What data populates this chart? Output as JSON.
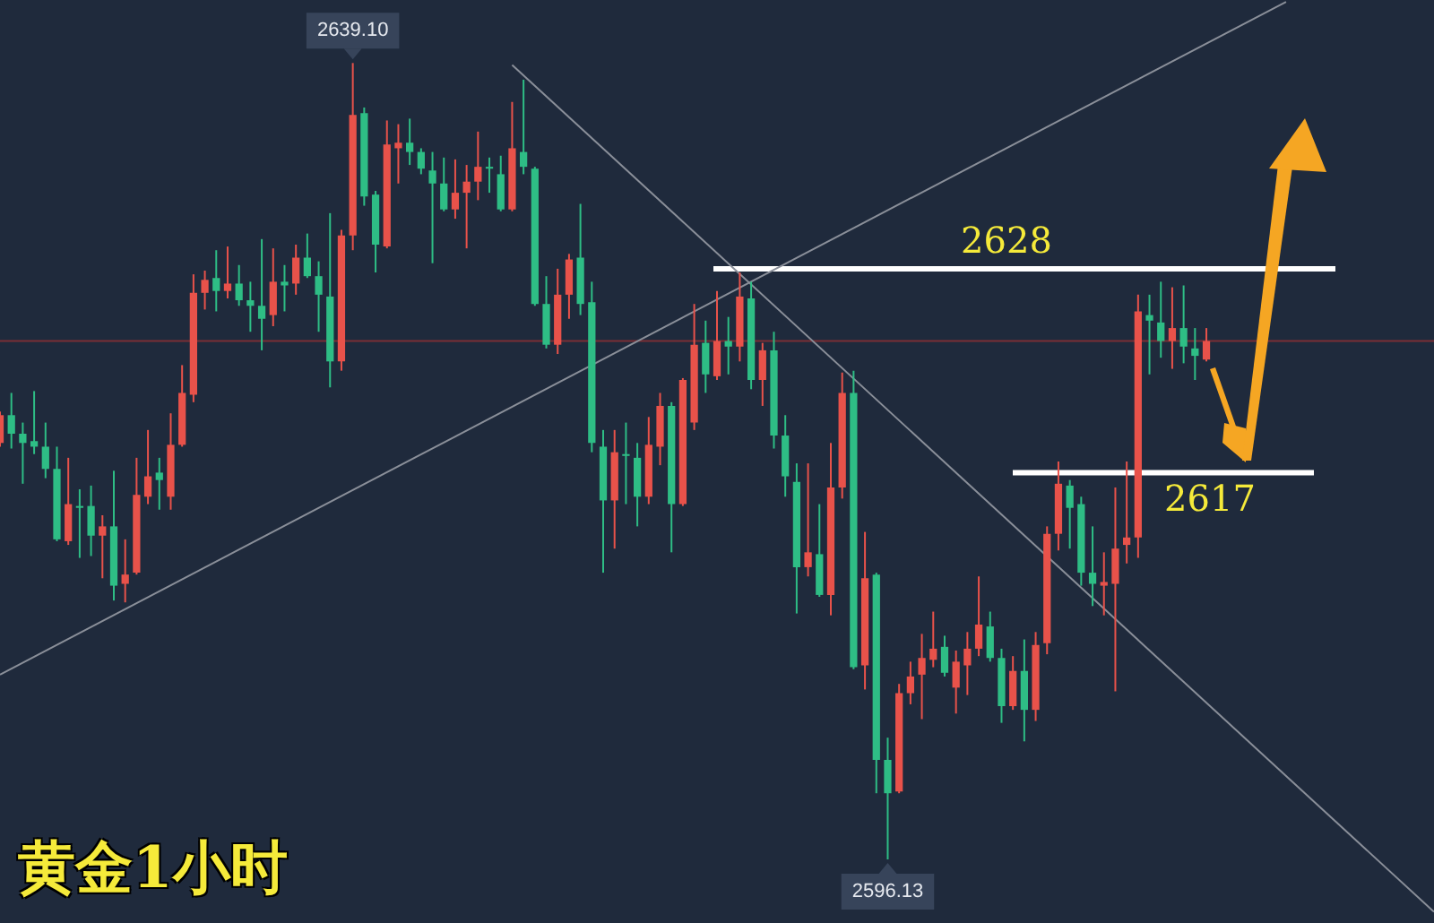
{
  "chart_data": {
    "type": "candlestick",
    "title": "黄金1小时",
    "categories": [
      null,
      null,
      null,
      null,
      null,
      null,
      null,
      null,
      null,
      null,
      null,
      null,
      null,
      null,
      null,
      null,
      null,
      null,
      null,
      null,
      null,
      null,
      null,
      null,
      null,
      null,
      null,
      null,
      null,
      null,
      null,
      null,
      null,
      null,
      null,
      null,
      null,
      null,
      null,
      null,
      null,
      null,
      null,
      null,
      null,
      null,
      null,
      null,
      null,
      null,
      null,
      null,
      null,
      null,
      null,
      null,
      null,
      null,
      null,
      null,
      null,
      null,
      null,
      null,
      null,
      null,
      null,
      null,
      null,
      null,
      null,
      null,
      null,
      null,
      null,
      null,
      null,
      null,
      null,
      null,
      null,
      null,
      null,
      null,
      null,
      null,
      null,
      null,
      null,
      null,
      null,
      null,
      null,
      null,
      null,
      null,
      null,
      null,
      null,
      null,
      null,
      null,
      null,
      null,
      null,
      null,
      null,
      null,
      null,
      null,
      null,
      null,
      null,
      null,
      null,
      null,
      null,
      null,
      null,
      null,
      null,
      null,
      null,
      null,
      null,
      null,
      null
    ],
    "ohlc": [
      [
        2618.6,
        2620.3,
        2618.4,
        2620.1
      ],
      [
        2620.1,
        2621.3,
        2618.3,
        2619.1
      ],
      [
        2619.1,
        2619.7,
        2616.4,
        2618.6
      ],
      [
        2618.7,
        2621.4,
        2618.0,
        2618.4
      ],
      [
        2618.4,
        2619.7,
        2616.7,
        2617.2
      ],
      [
        2617.2,
        2618.4,
        2613.3,
        2613.4
      ],
      [
        2613.3,
        2617.8,
        2613.1,
        2615.3
      ],
      [
        2615.2,
        2616.1,
        2612.4,
        2615.1
      ],
      [
        2615.2,
        2616.3,
        2612.5,
        2613.6
      ],
      [
        2613.6,
        2614.7,
        2611.3,
        2614.1
      ],
      [
        2614.1,
        2617.1,
        2610.1,
        2610.9
      ],
      [
        2611.0,
        2613.4,
        2610.0,
        2611.5
      ],
      [
        2611.6,
        2617.8,
        2611.5,
        2615.8
      ],
      [
        2615.7,
        2619.3,
        2615.3,
        2616.8
      ],
      [
        2617.0,
        2617.8,
        2615.0,
        2616.6
      ],
      [
        2615.7,
        2620.2,
        2615.0,
        2618.5
      ],
      [
        2618.5,
        2622.8,
        2618.4,
        2621.3
      ],
      [
        2621.2,
        2627.7,
        2620.8,
        2626.7
      ],
      [
        2626.7,
        2627.9,
        2625.8,
        2627.4
      ],
      [
        2627.5,
        2629.0,
        2625.7,
        2626.8
      ],
      [
        2626.8,
        2629.2,
        2626.4,
        2627.2
      ],
      [
        2627.2,
        2628.2,
        2626.0,
        2626.3
      ],
      [
        2626.3,
        2627.3,
        2624.6,
        2626.0
      ],
      [
        2626.0,
        2629.6,
        2623.6,
        2625.3
      ],
      [
        2625.5,
        2629.1,
        2624.9,
        2627.3
      ],
      [
        2627.3,
        2628.2,
        2625.7,
        2627.1
      ],
      [
        2627.2,
        2629.3,
        2626.6,
        2628.6
      ],
      [
        2628.6,
        2629.9,
        2627.5,
        2627.6
      ],
      [
        2627.6,
        2628.4,
        2624.6,
        2626.6
      ],
      [
        2626.5,
        2631.0,
        2621.6,
        2623.0
      ],
      [
        2623.0,
        2630.1,
        2622.5,
        2629.8
      ],
      [
        2629.8,
        2639.1,
        2629.0,
        2636.3
      ],
      [
        2636.4,
        2636.7,
        2631.4,
        2631.9
      ],
      [
        2632.0,
        2632.2,
        2627.8,
        2629.3
      ],
      [
        2629.2,
        2636.0,
        2629.1,
        2634.7
      ],
      [
        2634.5,
        2635.8,
        2632.6,
        2634.8
      ],
      [
        2634.8,
        2636.1,
        2633.6,
        2634.3
      ],
      [
        2634.3,
        2634.5,
        2633.1,
        2633.4
      ],
      [
        2633.3,
        2634.3,
        2628.3,
        2632.6
      ],
      [
        2632.6,
        2634.0,
        2631.1,
        2631.2
      ],
      [
        2631.2,
        2633.9,
        2630.7,
        2632.1
      ],
      [
        2632.1,
        2633.6,
        2629.1,
        2632.7
      ],
      [
        2632.7,
        2635.4,
        2631.7,
        2633.5
      ],
      [
        2633.5,
        2634.0,
        2632.1,
        2633.4
      ],
      [
        2633.1,
        2634.1,
        2631.1,
        2631.2
      ],
      [
        2631.2,
        2637.0,
        2631.1,
        2634.5
      ],
      [
        2634.3,
        2638.2,
        2633.1,
        2633.5
      ],
      [
        2633.4,
        2633.5,
        2626.0,
        2626.1
      ],
      [
        2626.1,
        2627.6,
        2623.7,
        2623.9
      ],
      [
        2623.9,
        2628.0,
        2623.4,
        2626.6
      ],
      [
        2626.6,
        2628.8,
        2625.3,
        2628.5
      ],
      [
        2628.6,
        2631.5,
        2625.5,
        2626.1
      ],
      [
        2626.2,
        2627.3,
        2618.1,
        2618.6
      ],
      [
        2618.4,
        2619.3,
        2611.6,
        2615.5
      ],
      [
        2615.5,
        2619.3,
        2612.9,
        2618.1
      ],
      [
        2618.0,
        2619.7,
        2615.3,
        2617.9
      ],
      [
        2617.8,
        2618.6,
        2614.1,
        2615.7
      ],
      [
        2615.7,
        2620.0,
        2615.3,
        2618.5
      ],
      [
        2618.4,
        2621.3,
        2617.4,
        2620.6
      ],
      [
        2620.6,
        2620.8,
        2612.7,
        2615.3
      ],
      [
        2615.3,
        2622.1,
        2615.2,
        2622.0
      ],
      [
        2619.7,
        2626.1,
        2619.3,
        2623.9
      ],
      [
        2624.0,
        2625.2,
        2621.3,
        2622.3
      ],
      [
        2622.2,
        2626.8,
        2622.0,
        2624.1
      ],
      [
        2624.1,
        2625.4,
        2622.3,
        2623.8
      ],
      [
        2623.8,
        2627.8,
        2623.0,
        2626.5
      ],
      [
        2626.4,
        2627.3,
        2621.5,
        2622.0
      ],
      [
        2622.0,
        2624.0,
        2620.6,
        2623.6
      ],
      [
        2623.6,
        2624.6,
        2618.3,
        2619.0
      ],
      [
        2619.0,
        2620.1,
        2615.7,
        2616.8
      ],
      [
        2616.5,
        2617.5,
        2609.4,
        2611.9
      ],
      [
        2611.9,
        2617.5,
        2611.4,
        2612.7
      ],
      [
        2612.6,
        2615.3,
        2610.3,
        2610.4
      ],
      [
        2610.4,
        2618.6,
        2609.3,
        2616.2
      ],
      [
        2616.2,
        2622.4,
        2615.6,
        2621.3
      ],
      [
        2621.3,
        2622.5,
        2606.4,
        2606.5
      ],
      [
        2606.6,
        2613.8,
        2605.3,
        2611.3
      ],
      [
        2611.5,
        2611.6,
        2599.7,
        2601.5
      ],
      [
        2601.5,
        2602.7,
        2596.13,
        2599.7
      ],
      [
        2599.8,
        2605.6,
        2599.7,
        2605.1
      ],
      [
        2605.1,
        2606.8,
        2604.5,
        2606.0
      ],
      [
        2606.1,
        2608.3,
        2603.7,
        2607.0
      ],
      [
        2606.9,
        2609.5,
        2606.5,
        2607.5
      ],
      [
        2607.6,
        2608.2,
        2606.0,
        2606.2
      ],
      [
        2605.4,
        2607.4,
        2604.0,
        2606.8
      ],
      [
        2606.6,
        2608.4,
        2605.0,
        2607.5
      ],
      [
        2607.5,
        2611.4,
        2607.1,
        2608.8
      ],
      [
        2608.7,
        2609.5,
        2606.8,
        2607.0
      ],
      [
        2607.0,
        2607.5,
        2603.5,
        2604.4
      ],
      [
        2604.4,
        2607.1,
        2604.2,
        2606.3
      ],
      [
        2606.3,
        2608.0,
        2602.5,
        2604.2
      ],
      [
        2604.2,
        2608.4,
        2603.6,
        2607.7
      ],
      [
        2607.8,
        2614.1,
        2607.2,
        2613.7
      ],
      [
        2613.7,
        2617.6,
        2612.8,
        2616.4
      ],
      [
        2616.3,
        2616.6,
        2612.9,
        2615.1
      ],
      [
        2615.3,
        2615.7,
        2610.9,
        2611.6
      ],
      [
        2611.6,
        2614.1,
        2609.8,
        2611.0
      ],
      [
        2610.9,
        2612.7,
        2609.3,
        2611.1
      ],
      [
        2611.0,
        2616.2,
        2605.2,
        2612.9
      ],
      [
        2613.1,
        2617.6,
        2612.1,
        2613.5
      ],
      [
        2613.5,
        2626.6,
        2612.4,
        2625.7
      ],
      [
        2625.5,
        2626.6,
        2622.3,
        2625.2
      ],
      [
        2625.1,
        2627.3,
        2623.2,
        2624.1
      ],
      [
        2624.1,
        2627.0,
        2622.6,
        2624.8
      ],
      [
        2624.8,
        2627.1,
        2622.9,
        2623.8
      ],
      [
        2623.7,
        2624.8,
        2622.0,
        2623.3
      ],
      [
        2623.1,
        2624.8,
        2623.0,
        2624.1
      ],
      null,
      null,
      null,
      null,
      null,
      null,
      null,
      null,
      null,
      null,
      null,
      null,
      null,
      null,
      null,
      null,
      null,
      null,
      null,
      null
    ],
    "colors": [
      "#e8524a",
      "#2ebd85",
      "#2ebd85",
      "#2ebd85",
      "#2ebd85",
      "#2ebd85",
      "#e8524a",
      "#2ebd85",
      "#2ebd85",
      "#e8524a",
      "#2ebd85",
      "#e8524a",
      "#e8524a",
      "#e8524a",
      "#2ebd85",
      "#e8524a",
      "#e8524a",
      "#e8524a",
      "#e8524a",
      "#2ebd85",
      "#e8524a",
      "#2ebd85",
      "#2ebd85",
      "#2ebd85",
      "#e8524a",
      "#2ebd85",
      "#e8524a",
      "#2ebd85",
      "#2ebd85",
      "#2ebd85",
      "#e8524a",
      "#e8524a",
      "#2ebd85",
      "#2ebd85",
      "#e8524a",
      "#e8524a",
      "#2ebd85",
      "#2ebd85",
      "#2ebd85",
      "#2ebd85",
      "#e8524a",
      "#e8524a",
      "#e8524a",
      "#2ebd85",
      "#2ebd85",
      "#e8524a",
      "#2ebd85",
      "#2ebd85",
      "#2ebd85",
      "#e8524a",
      "#e8524a",
      "#2ebd85",
      "#2ebd85",
      "#2ebd85",
      "#e8524a",
      "#2ebd85",
      "#2ebd85",
      "#e8524a",
      "#e8524a",
      "#2ebd85",
      "#e8524a",
      "#e8524a",
      "#2ebd85",
      "#e8524a",
      "#2ebd85",
      "#e8524a",
      "#2ebd85",
      "#e8524a",
      "#2ebd85",
      "#2ebd85",
      "#2ebd85",
      "#e8524a",
      "#2ebd85",
      "#e8524a",
      "#e8524a",
      "#2ebd85",
      "#e8524a",
      "#2ebd85",
      "#2ebd85",
      "#e8524a",
      "#e8524a",
      "#e8524a",
      "#e8524a",
      "#2ebd85",
      "#e8524a",
      "#e8524a",
      "#e8524a",
      "#2ebd85",
      "#2ebd85",
      "#e8524a",
      "#2ebd85",
      "#e8524a",
      "#e8524a",
      "#e8524a",
      "#2ebd85",
      "#2ebd85",
      "#2ebd85",
      "#e8524a",
      "#e8524a",
      "#e8524a",
      "#e8524a",
      "#2ebd85",
      "#2ebd85",
      "#e8524a",
      "#2ebd85",
      "#2ebd85",
      "#e8524a",
      null,
      null,
      null,
      null,
      null,
      null,
      null,
      null,
      null,
      null,
      null,
      null,
      null,
      null,
      null,
      null,
      null,
      null,
      null,
      null
    ],
    "series": [
      {
        "type": "line",
        "color": "#8a8f99",
        "values": [
          2606.1,
          null,
          null,
          null,
          null,
          null,
          null,
          null,
          null,
          null,
          null,
          null,
          null,
          null,
          null,
          null,
          null,
          null,
          null,
          null,
          null,
          null,
          null,
          null,
          null,
          null,
          null,
          null,
          null,
          null,
          null,
          null,
          null,
          null,
          null,
          null,
          null,
          null,
          null,
          null,
          null,
          null,
          null,
          null,
          null,
          null,
          null,
          null,
          null,
          null,
          null,
          null,
          null,
          null,
          null,
          null,
          null,
          null,
          null,
          null,
          null,
          null,
          null,
          null,
          null,
          null,
          null,
          null,
          null,
          null,
          null,
          null,
          null,
          null,
          null,
          null,
          null,
          null,
          null,
          null,
          null,
          null,
          null,
          null,
          null,
          null,
          null,
          null,
          null,
          null,
          null,
          null,
          null,
          null,
          null,
          null,
          null,
          null,
          null,
          null,
          null,
          null,
          null,
          null,
          null,
          null,
          null,
          null,
          null,
          null,
          null,
          null,
          null,
          2642.4,
          null,
          null,
          null,
          null,
          null,
          null,
          null,
          null,
          null,
          null,
          null,
          null,
          null
        ]
      },
      {
        "type": "line",
        "color": "#8a8f99",
        "values": [
          null,
          null,
          null,
          null,
          null,
          null,
          null,
          null,
          null,
          null,
          null,
          null,
          null,
          null,
          null,
          null,
          null,
          null,
          null,
          null,
          null,
          null,
          null,
          null,
          null,
          null,
          null,
          null,
          null,
          null,
          null,
          null,
          null,
          null,
          null,
          null,
          null,
          null,
          null,
          null,
          null,
          null,
          null,
          null,
          null,
          2639.0,
          null,
          null,
          null,
          null,
          null,
          null,
          null,
          null,
          null,
          null,
          null,
          null,
          null,
          null,
          null,
          null,
          null,
          null,
          null,
          null,
          null,
          null,
          null,
          null,
          null,
          null,
          null,
          null,
          null,
          null,
          null,
          null,
          null,
          null,
          null,
          null,
          null,
          null,
          null,
          null,
          null,
          null,
          null,
          null,
          null,
          null,
          null,
          null,
          null,
          null,
          null,
          null,
          null,
          null,
          null,
          null,
          null,
          null,
          null,
          null,
          null,
          null,
          null,
          null,
          null,
          null,
          null,
          null,
          null,
          null,
          null,
          null,
          null,
          null,
          null,
          null,
          null,
          null,
          null,
          null,
          2593.3
        ]
      }
    ],
    "ylim": [
      2592.7,
      2642.5
    ],
    "ref_lines": [
      {
        "axis": "y",
        "value": 2624.1,
        "color": "#7a2e35"
      },
      {
        "axis": "y",
        "value": 2628,
        "label": "2628",
        "color": "#ffffff"
      },
      {
        "axis": "y",
        "value": 2617,
        "label": "2617",
        "color": "#ffffff"
      }
    ],
    "annotations": [
      {
        "text": "2639.10",
        "y": 2639.1
      },
      {
        "text": "2596.13",
        "y": 2596.13
      }
    ],
    "tick_labels": false,
    "grid": false,
    "legend": false
  }
}
